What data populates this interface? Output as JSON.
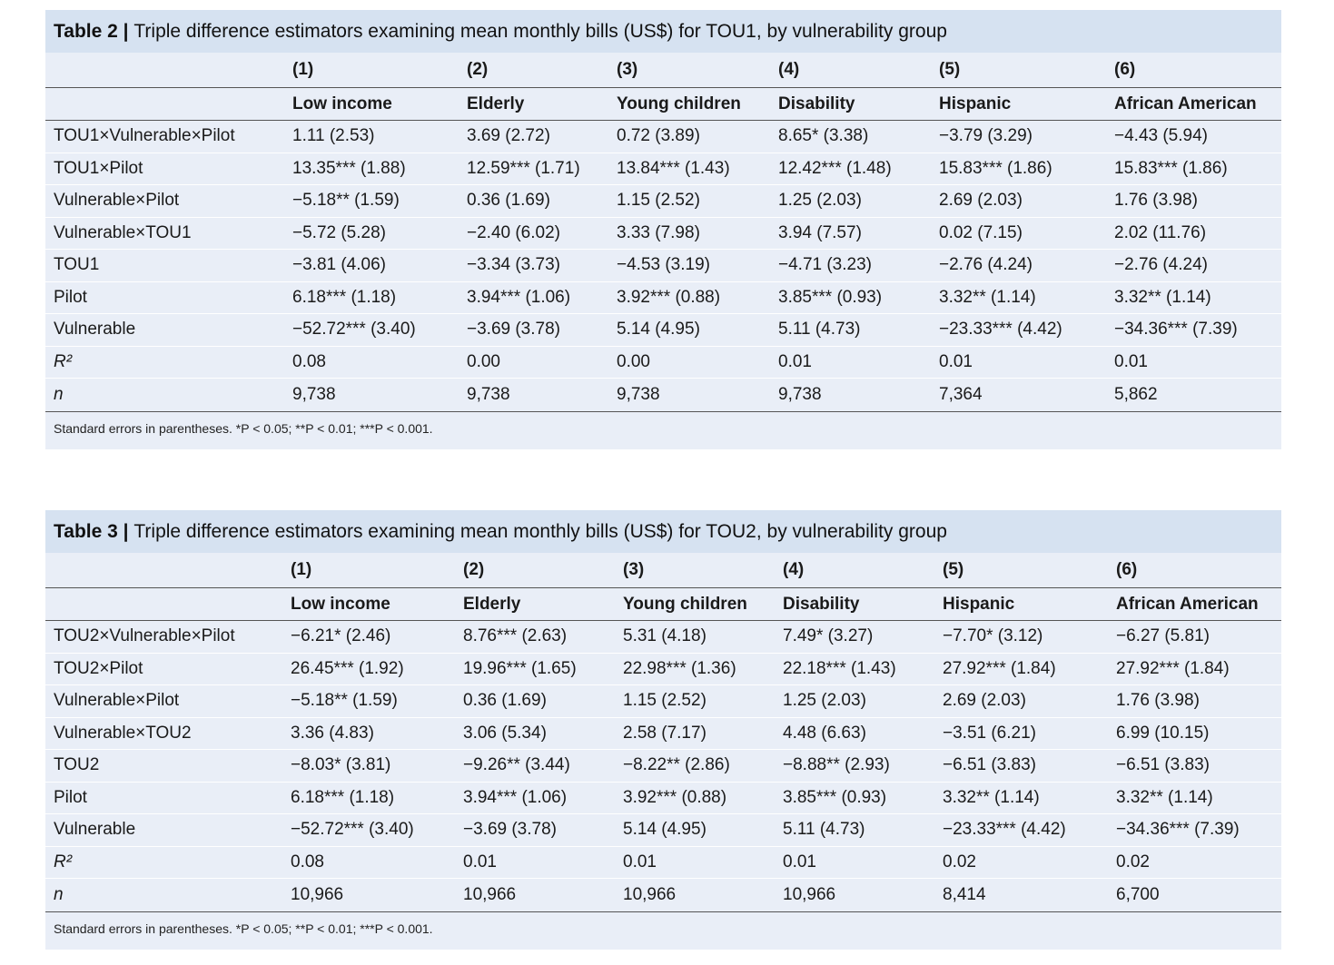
{
  "tables": [
    {
      "label": "Table 2 |",
      "title": "Triple difference estimators examining mean monthly bills (US$) for TOU1, by vulnerability group",
      "col_numbers": [
        "(1)",
        "(2)",
        "(3)",
        "(4)",
        "(5)",
        "(6)"
      ],
      "col_labels": [
        "Low income",
        "Elderly",
        "Young children",
        "Disability",
        "Hispanic",
        "African American"
      ],
      "rows": [
        {
          "label": "TOU1×Vulnerable×Pilot",
          "cells": [
            "1.11 (2.53)",
            "3.69 (2.72)",
            "0.72 (3.89)",
            "8.65* (3.38)",
            "−3.79 (3.29)",
            "−4.43 (5.94)"
          ]
        },
        {
          "label": "TOU1×Pilot",
          "cells": [
            "13.35*** (1.88)",
            "12.59*** (1.71)",
            "13.84*** (1.43)",
            "12.42*** (1.48)",
            "15.83*** (1.86)",
            "15.83*** (1.86)"
          ]
        },
        {
          "label": "Vulnerable×Pilot",
          "cells": [
            "−5.18** (1.59)",
            "0.36 (1.69)",
            "1.15 (2.52)",
            "1.25 (2.03)",
            "2.69 (2.03)",
            "1.76 (3.98)"
          ]
        },
        {
          "label": "Vulnerable×TOU1",
          "cells": [
            "−5.72 (5.28)",
            "−2.40 (6.02)",
            "3.33 (7.98)",
            "3.94 (7.57)",
            "0.02 (7.15)",
            "2.02 (11.76)"
          ]
        },
        {
          "label": "TOU1",
          "cells": [
            "−3.81 (4.06)",
            "−3.34 (3.73)",
            "−4.53 (3.19)",
            "−4.71 (3.23)",
            "−2.76 (4.24)",
            "−2.76 (4.24)"
          ]
        },
        {
          "label": "Pilot",
          "cells": [
            "6.18*** (1.18)",
            "3.94*** (1.06)",
            "3.92*** (0.88)",
            "3.85*** (0.93)",
            "3.32** (1.14)",
            "3.32** (1.14)"
          ]
        },
        {
          "label": "Vulnerable",
          "cells": [
            "−52.72*** (3.40)",
            "−3.69 (3.78)",
            "5.14 (4.95)",
            "5.11 (4.73)",
            "−23.33*** (4.42)",
            "−34.36*** (7.39)"
          ]
        },
        {
          "label": "R²",
          "italic": true,
          "cells": [
            "0.08",
            "0.00",
            "0.00",
            "0.01",
            "0.01",
            "0.01"
          ]
        },
        {
          "label": "n",
          "italic": true,
          "cells": [
            "9,738",
            "9,738",
            "9,738",
            "9,738",
            "7,364",
            "5,862"
          ]
        }
      ],
      "note": "Standard errors in parentheses. *P < 0.05; **P < 0.01; ***P < 0.001."
    },
    {
      "label": "Table 3 |",
      "title": "Triple difference estimators examining mean monthly bills (US$) for TOU2, by vulnerability group",
      "col_numbers": [
        "(1)",
        "(2)",
        "(3)",
        "(4)",
        "(5)",
        "(6)"
      ],
      "col_labels": [
        "Low income",
        "Elderly",
        "Young children",
        "Disability",
        "Hispanic",
        "African American"
      ],
      "rows": [
        {
          "label": "TOU2×Vulnerable×Pilot",
          "cells": [
            "−6.21* (2.46)",
            "8.76*** (2.63)",
            "5.31 (4.18)",
            "7.49* (3.27)",
            "−7.70* (3.12)",
            "−6.27 (5.81)"
          ]
        },
        {
          "label": "TOU2×Pilot",
          "cells": [
            "26.45*** (1.92)",
            "19.96*** (1.65)",
            "22.98*** (1.36)",
            "22.18*** (1.43)",
            "27.92*** (1.84)",
            "27.92*** (1.84)"
          ]
        },
        {
          "label": "Vulnerable×Pilot",
          "cells": [
            "−5.18** (1.59)",
            "0.36 (1.69)",
            "1.15 (2.52)",
            "1.25 (2.03)",
            "2.69 (2.03)",
            "1.76 (3.98)"
          ]
        },
        {
          "label": "Vulnerable×TOU2",
          "cells": [
            "3.36 (4.83)",
            "3.06 (5.34)",
            "2.58 (7.17)",
            "4.48 (6.63)",
            "−3.51 (6.21)",
            "6.99 (10.15)"
          ]
        },
        {
          "label": "TOU2",
          "cells": [
            "−8.03* (3.81)",
            "−9.26** (3.44)",
            "−8.22** (2.86)",
            "−8.88** (2.93)",
            "−6.51 (3.83)",
            "−6.51 (3.83)"
          ]
        },
        {
          "label": "Pilot",
          "cells": [
            "6.18*** (1.18)",
            "3.94*** (1.06)",
            "3.92*** (0.88)",
            "3.85*** (0.93)",
            "3.32** (1.14)",
            "3.32** (1.14)"
          ]
        },
        {
          "label": "Vulnerable",
          "cells": [
            "−52.72*** (3.40)",
            "−3.69 (3.78)",
            "5.14 (4.95)",
            "5.11 (4.73)",
            "−23.33*** (4.42)",
            "−34.36*** (7.39)"
          ]
        },
        {
          "label": "R²",
          "italic": true,
          "cells": [
            "0.08",
            "0.01",
            "0.01",
            "0.01",
            "0.02",
            "0.02"
          ]
        },
        {
          "label": "n",
          "italic": true,
          "cells": [
            "10,966",
            "10,966",
            "10,966",
            "10,966",
            "8,414",
            "6,700"
          ]
        }
      ],
      "note": "Standard errors in parentheses. *P < 0.05; **P < 0.01; ***P < 0.001."
    }
  ]
}
